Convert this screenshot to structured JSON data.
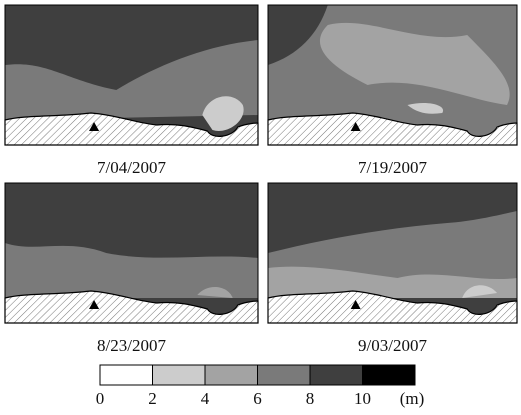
{
  "panels": [
    {
      "date": "7/04/2007"
    },
    {
      "date": "7/19/2007"
    },
    {
      "date": "8/23/2007"
    },
    {
      "date": "9/03/2007"
    }
  ],
  "legend": {
    "ticks": [
      0,
      2,
      4,
      6,
      8,
      10
    ],
    "unit": "(m)",
    "colors": [
      "#ffffff",
      "#cccccc",
      "#a3a3a3",
      "#7a7a7a",
      "#3f3f3f",
      "#000000"
    ]
  }
}
